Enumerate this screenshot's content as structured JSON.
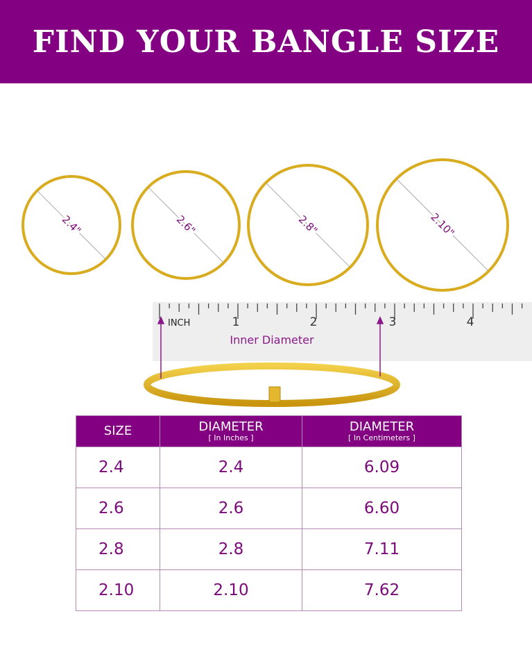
{
  "title": "FIND YOUR BANGLE SIZE",
  "circles": [
    {
      "label": "2.4\""
    },
    {
      "label": "2.6\""
    },
    {
      "label": "2.8\""
    },
    {
      "label": "2.10\""
    }
  ],
  "ruler": {
    "unit": "INCH",
    "ticks": [
      "1",
      "2",
      "3",
      "4"
    ],
    "caption": "Inner Diameter"
  },
  "colors": {
    "brand": "#830083",
    "gold": "#d9ac1f"
  },
  "table": {
    "headers": [
      {
        "title": "SIZE",
        "sub": ""
      },
      {
        "title": "DIAMETER",
        "sub": "[ In Inches ]"
      },
      {
        "title": "DIAMETER",
        "sub": "[ In Centimeters ]"
      }
    ],
    "rows": [
      [
        "2.4",
        "2.4",
        "6.09"
      ],
      [
        "2.6",
        "2.6",
        "6.60"
      ],
      [
        "2.8",
        "2.8",
        "7.11"
      ],
      [
        "2.10",
        "2.10",
        "7.62"
      ]
    ]
  }
}
